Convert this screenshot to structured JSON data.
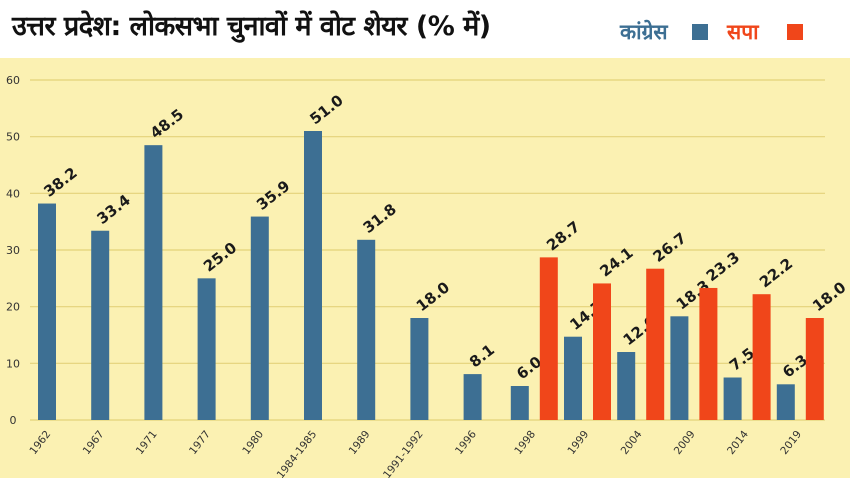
{
  "title": "उत्तर प्रदेश: लोकसभा चुनावों में वोट शेयर (% में)",
  "legend": [
    {
      "label": "कांग्रेस",
      "color": "#3d6f93",
      "text_color": "#3d6f93"
    },
    {
      "label": "सपा",
      "color": "#f0461a",
      "text_color": "#f0461a"
    }
  ],
  "chart_data": {
    "type": "bar",
    "title": "उत्तर प्रदेश: लोकसभा चुनावों में वोट शेयर (% में)",
    "xlabel": "",
    "ylabel": "",
    "ylim": [
      0,
      60
    ],
    "yticks": [
      0,
      10,
      20,
      30,
      40,
      50,
      60
    ],
    "grid": true,
    "legend_position": "top-right",
    "categories": [
      "1962",
      "1967",
      "1971",
      "1977",
      "1980",
      "1984-1985",
      "1989",
      "1991-1992",
      "1996",
      "1998",
      "1999",
      "2004",
      "2009",
      "2014",
      "2019"
    ],
    "series": [
      {
        "name": "कांग्रेस",
        "color": "#3d6f93",
        "values": [
          38.2,
          33.4,
          48.5,
          25.0,
          35.9,
          51.0,
          31.8,
          18.0,
          8.1,
          6.0,
          14.7,
          12.0,
          18.3,
          7.5,
          6.3
        ]
      },
      {
        "name": "सपा",
        "color": "#f0461a",
        "values": [
          null,
          null,
          null,
          null,
          null,
          null,
          null,
          null,
          null,
          28.7,
          24.1,
          26.7,
          23.3,
          22.2,
          18.0
        ]
      }
    ]
  }
}
